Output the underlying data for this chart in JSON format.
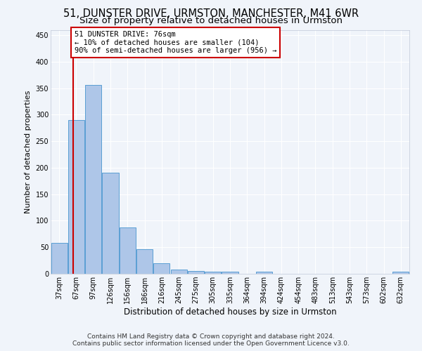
{
  "title": "51, DUNSTER DRIVE, URMSTON, MANCHESTER, M41 6WR",
  "subtitle": "Size of property relative to detached houses in Urmston",
  "xlabel": "Distribution of detached houses by size in Urmston",
  "ylabel": "Number of detached properties",
  "categories": [
    "37sqm",
    "67sqm",
    "97sqm",
    "126sqm",
    "156sqm",
    "186sqm",
    "216sqm",
    "245sqm",
    "275sqm",
    "305sqm",
    "335sqm",
    "364sqm",
    "394sqm",
    "424sqm",
    "454sqm",
    "483sqm",
    "513sqm",
    "543sqm",
    "573sqm",
    "602sqm",
    "632sqm"
  ],
  "bar_heights": [
    58,
    290,
    356,
    191,
    88,
    46,
    20,
    8,
    5,
    4,
    4,
    0,
    4,
    0,
    0,
    0,
    0,
    0,
    0,
    0,
    4
  ],
  "bar_color": "#aec6e8",
  "bar_edge_color": "#5a9fd4",
  "property_line_x": 76,
  "property_line_color": "#cc0000",
  "annotation_title": "51 DUNSTER DRIVE: 76sqm",
  "annotation_line1": "← 10% of detached houses are smaller (104)",
  "annotation_line2": "90% of semi-detached houses are larger (956) →",
  "annotation_box_color": "#ffffff",
  "annotation_box_edge_color": "#cc0000",
  "ylim": [
    0,
    460
  ],
  "yticks": [
    0,
    50,
    100,
    150,
    200,
    250,
    300,
    350,
    400,
    450
  ],
  "footer_line1": "Contains HM Land Registry data © Crown copyright and database right 2024.",
  "footer_line2": "Contains public sector information licensed under the Open Government Licence v3.0.",
  "bg_color": "#f0f4fa",
  "axes_bg_color": "#f0f4fa",
  "grid_color": "#ffffff",
  "title_fontsize": 10.5,
  "subtitle_fontsize": 9.5,
  "xlabel_fontsize": 8.5,
  "ylabel_fontsize": 8,
  "tick_fontsize": 7,
  "footer_fontsize": 6.5,
  "annotation_fontsize": 7.5
}
